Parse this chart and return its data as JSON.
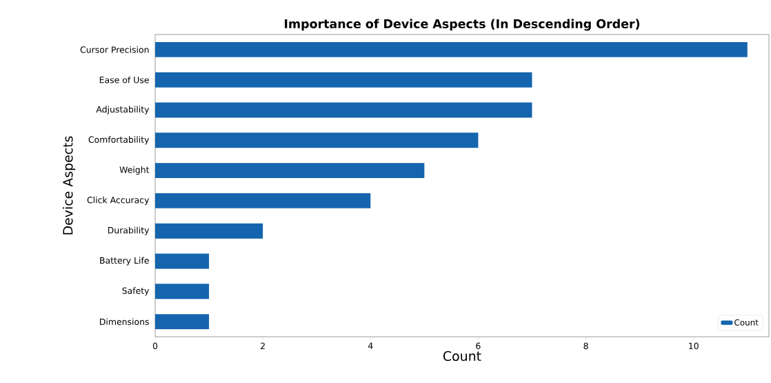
{
  "chart_data": {
    "type": "bar",
    "orientation": "horizontal",
    "title": "Importance of Device Aspects (In Descending Order)",
    "xlabel": "Count",
    "ylabel": "Device Aspects",
    "categories": [
      "Cursor Precision",
      "Ease of Use",
      "Adjustability",
      "Comfortability",
      "Weight",
      "Click Accuracy",
      "Durability",
      "Battery Life",
      "Safety",
      "Dimensions"
    ],
    "series": [
      {
        "name": "Count",
        "color": "#1565ae",
        "values": [
          11,
          7,
          7,
          6,
          5,
          4,
          2,
          1,
          1,
          1
        ]
      }
    ],
    "xlim": [
      0,
      11.4
    ],
    "xticks": [
      0,
      2,
      4,
      6,
      8,
      10
    ],
    "legend": "bottom right"
  }
}
